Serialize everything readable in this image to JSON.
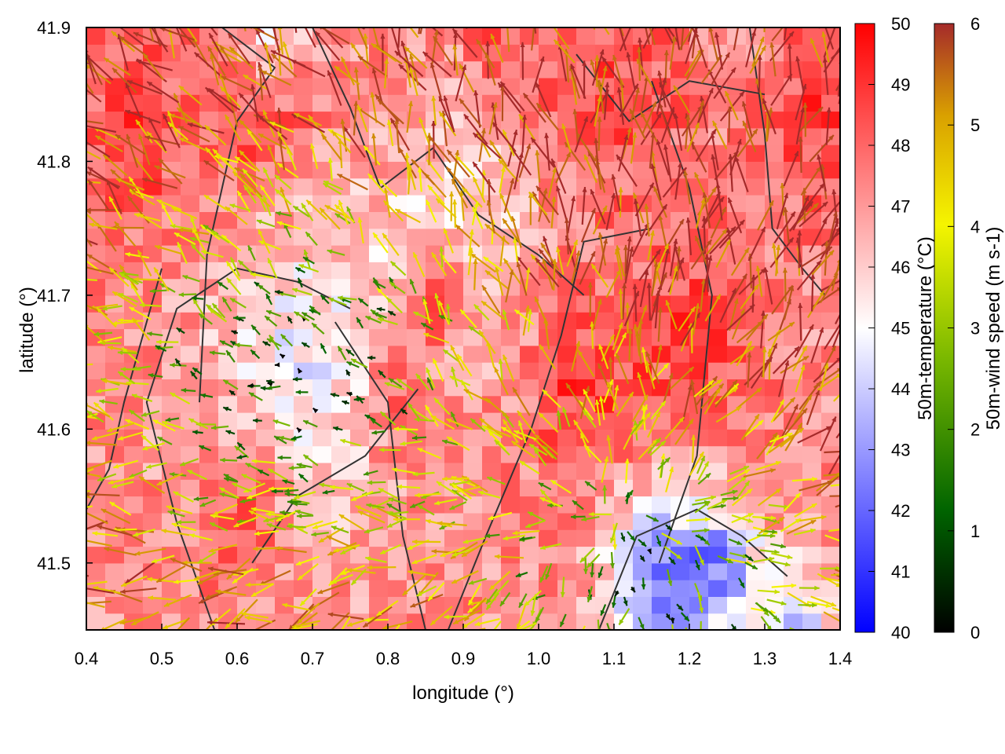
{
  "chart_data": {
    "type": "heatmap",
    "title": "",
    "xlabel": "longitude (°)",
    "ylabel": "latitude (°)",
    "xlim": [
      0.4,
      1.4
    ],
    "ylim": [
      41.45,
      41.9
    ],
    "xticks": [
      "0.4",
      "0.5",
      "0.6",
      "0.7",
      "0.8",
      "0.9",
      "1.0",
      "1.1",
      "1.2",
      "1.3",
      "1.4"
    ],
    "yticks": [
      "41.5",
      "41.6",
      "41.7",
      "41.8",
      "41.9"
    ],
    "grid": false,
    "temperature_colorbar": {
      "label": "50m-temperature (°C)",
      "range": [
        40,
        50
      ],
      "ticks": [
        "40",
        "41",
        "42",
        "43",
        "44",
        "45",
        "46",
        "47",
        "48",
        "49",
        "50"
      ],
      "colors": [
        "#0000ff",
        "#ffffff",
        "#ff0000"
      ]
    },
    "wind_colorbar": {
      "label": "50m-wind speed (m s-1)",
      "range": [
        0,
        6
      ],
      "ticks": [
        "0",
        "1",
        "2",
        "3",
        "4",
        "5",
        "6"
      ],
      "colors": [
        "#000000",
        "#006400",
        "#7ab800",
        "#f5f500",
        "#d9a000",
        "#a52a2a"
      ]
    },
    "temperature_field": {
      "base": 47.2,
      "features": [
        {
          "lon": 0.68,
          "lat": 41.64,
          "delta": -2.3,
          "radius_deg": 0.12
        },
        {
          "lon": 0.88,
          "lat": 41.75,
          "delta": -1.8,
          "radius_deg": 0.09
        },
        {
          "lon": 0.8,
          "lat": 41.62,
          "delta": 1.6,
          "radius_deg": 0.05
        },
        {
          "lon": 0.6,
          "lat": 41.53,
          "delta": 1.7,
          "radius_deg": 0.06
        },
        {
          "lon": 0.45,
          "lat": 41.82,
          "delta": 1.6,
          "radius_deg": 0.08
        },
        {
          "lon": 0.62,
          "lat": 41.83,
          "delta": 1.6,
          "radius_deg": 0.07
        },
        {
          "lon": 0.85,
          "lat": 41.7,
          "delta": 2.4,
          "radius_deg": 0.04
        },
        {
          "lon": 1.05,
          "lat": 41.62,
          "delta": 1.8,
          "radius_deg": 0.07
        },
        {
          "lon": 1.2,
          "lat": 41.66,
          "delta": 1.6,
          "radius_deg": 0.08
        },
        {
          "lon": 1.1,
          "lat": 41.85,
          "delta": 1.2,
          "radius_deg": 0.1
        },
        {
          "lon": 0.95,
          "lat": 41.9,
          "delta": 1.0,
          "radius_deg": 0.08
        },
        {
          "lon": 1.35,
          "lat": 41.82,
          "delta": 1.5,
          "radius_deg": 0.07
        },
        {
          "lon": 1.15,
          "lat": 41.48,
          "delta": -4.2,
          "radius_deg": 0.07
        },
        {
          "lon": 1.23,
          "lat": 41.49,
          "delta": -3.6,
          "radius_deg": 0.05
        },
        {
          "lon": 1.33,
          "lat": 41.45,
          "delta": -3.0,
          "radius_deg": 0.05
        },
        {
          "lon": 0.63,
          "lat": 41.9,
          "delta": -2.6,
          "radius_deg": 0.05
        },
        {
          "lon": 0.27,
          "lat": 41.55,
          "delta": 1.8,
          "radius_deg": 0.06
        }
      ]
    },
    "wind_field": {
      "centers": [
        {
          "lon": 0.68,
          "lat": 41.64,
          "radius_deg": 0.28,
          "weak_speed": 0.6
        },
        {
          "lon": 1.15,
          "lat": 41.48,
          "radius_deg": 0.24,
          "weak_speed": 1.0
        }
      ],
      "ambient_speed": 6.0
    },
    "contours": [
      [
        [
          0.5,
          41.72
        ],
        [
          0.45,
          41.62
        ],
        [
          0.43,
          41.57
        ],
        [
          0.38,
          41.52
        ],
        [
          0.32,
          41.48
        ]
      ],
      [
        [
          0.57,
          41.45
        ],
        [
          0.52,
          41.53
        ],
        [
          0.48,
          41.62
        ],
        [
          0.52,
          41.69
        ],
        [
          0.6,
          41.72
        ],
        [
          0.68,
          41.71
        ],
        [
          0.75,
          41.69
        ]
      ],
      [
        [
          0.73,
          41.68
        ],
        [
          0.8,
          41.62
        ],
        [
          0.82,
          41.52
        ],
        [
          0.85,
          41.45
        ]
      ],
      [
        [
          0.62,
          41.5
        ],
        [
          0.68,
          41.55
        ],
        [
          0.77,
          41.58
        ],
        [
          0.84,
          41.63
        ]
      ],
      [
        [
          0.55,
          41.62
        ],
        [
          0.56,
          41.73
        ],
        [
          0.6,
          41.83
        ],
        [
          0.65,
          41.87
        ],
        [
          0.58,
          41.9
        ]
      ],
      [
        [
          0.7,
          41.9
        ],
        [
          0.75,
          41.84
        ],
        [
          0.79,
          41.78
        ],
        [
          0.86,
          41.81
        ],
        [
          0.92,
          41.76
        ],
        [
          1.0,
          41.73
        ],
        [
          1.06,
          41.7
        ]
      ],
      [
        [
          0.88,
          41.45
        ],
        [
          0.93,
          41.52
        ],
        [
          0.99,
          41.6
        ],
        [
          1.03,
          41.67
        ],
        [
          1.06,
          41.74
        ],
        [
          1.15,
          41.75
        ]
      ],
      [
        [
          1.15,
          41.86
        ],
        [
          1.2,
          41.78
        ],
        [
          1.23,
          41.7
        ],
        [
          1.21,
          41.58
        ],
        [
          1.16,
          41.5
        ]
      ],
      [
        [
          1.08,
          41.45
        ],
        [
          1.13,
          41.52
        ],
        [
          1.21,
          41.54
        ],
        [
          1.27,
          41.52
        ],
        [
          1.33,
          41.49
        ]
      ],
      [
        [
          1.28,
          41.9
        ],
        [
          1.3,
          41.82
        ],
        [
          1.31,
          41.75
        ],
        [
          1.35,
          41.72
        ],
        [
          1.38,
          41.7
        ]
      ],
      [
        [
          1.05,
          41.88
        ],
        [
          1.12,
          41.83
        ],
        [
          1.2,
          41.86
        ],
        [
          1.3,
          41.85
        ]
      ]
    ]
  }
}
